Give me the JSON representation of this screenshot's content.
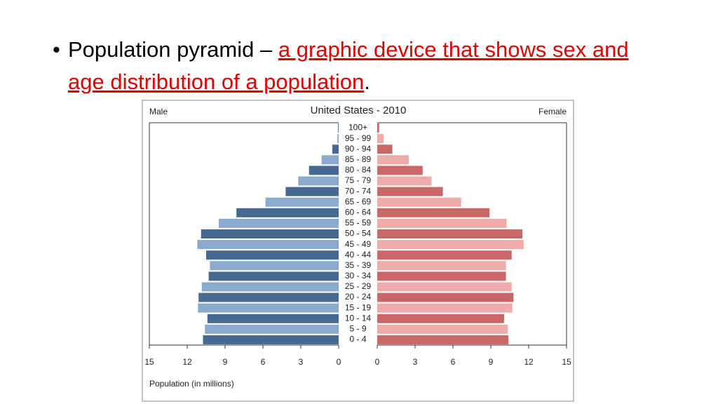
{
  "slide": {
    "bullet_text": "Population pyramid – ",
    "definition": "a graphic device that shows sex and age distribution of a population",
    "end": "."
  },
  "chart_data": {
    "type": "pyramid",
    "title": "United States - 2010",
    "x_label": "Population (in millions)",
    "categories": [
      "100+",
      "95 - 99",
      "90 - 94",
      "85 - 89",
      "80 - 84",
      "75 - 79",
      "70 - 74",
      "65 - 69",
      "60 - 64",
      "55 - 59",
      "50 - 54",
      "45 - 49",
      "40 - 44",
      "35 - 39",
      "30 - 34",
      "25 - 29",
      "20 - 24",
      "15 - 19",
      "10 - 14",
      "5 - 9",
      "0 - 4"
    ],
    "series": [
      {
        "name": "Male",
        "colors": [
          "#46698f",
          "#8aabcd"
        ],
        "values": [
          0.05,
          0.1,
          0.5,
          1.35,
          2.35,
          3.2,
          4.2,
          5.8,
          8.1,
          9.5,
          10.9,
          11.2,
          10.5,
          10.2,
          10.3,
          10.85,
          11.1,
          11.15,
          10.4,
          10.6,
          10.75
        ]
      },
      {
        "name": "Female",
        "colors": [
          "#c96767",
          "#efaaaa"
        ],
        "values": [
          0.15,
          0.5,
          1.2,
          2.5,
          3.6,
          4.3,
          5.2,
          6.65,
          8.9,
          10.25,
          11.5,
          11.6,
          10.65,
          10.2,
          10.2,
          10.65,
          10.8,
          10.7,
          10.05,
          10.35,
          10.4
        ]
      }
    ],
    "xlim": [
      0,
      15
    ],
    "xticks": [
      0,
      3,
      6,
      9,
      12,
      15
    ]
  }
}
